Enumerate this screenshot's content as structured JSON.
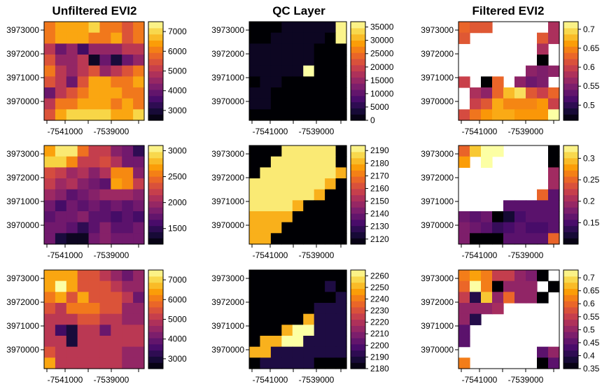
{
  "titles": [
    "Unfiltered EVI2",
    "QC Layer",
    "Filtered EVI2"
  ],
  "colors": [
    "#000004",
    "#1b0c41",
    "#4a0c6b",
    "#781c6d",
    "#a52c60",
    "#cf4446",
    "#ed6925",
    "#fb9b06",
    "#f7d13d",
    "#fcffa4"
  ],
  "x_ticks": [
    -7541000,
    -7539000
  ],
  "y_ticks": [
    3973000,
    3972000,
    3971000,
    3970000
  ],
  "chart_data": [
    {
      "type": "heatmap",
      "row": 0,
      "col": 0,
      "title": "Unfiltered EVI2",
      "xlabel": "",
      "ylabel": "",
      "x_ticks": [
        -7541000,
        -7539000
      ],
      "y_ticks": [
        3973000,
        3972000,
        3971000,
        3970000
      ],
      "legend_range": [
        2500,
        7500
      ],
      "legend_ticks": [
        3000,
        4000,
        5000,
        6000,
        7000
      ],
      "grid": [
        [
          6000,
          6500,
          6500,
          6500,
          7000,
          6000,
          6000,
          5500,
          6000
        ],
        [
          6000,
          6500,
          6500,
          6500,
          6000,
          6000,
          6500,
          5500,
          6000
        ],
        [
          5000,
          4000,
          4500,
          3500,
          4500,
          4500,
          4500,
          5000,
          5000
        ],
        [
          5500,
          4500,
          4500,
          5000,
          2800,
          4000,
          3000,
          4000,
          4500
        ],
        [
          6000,
          5000,
          4500,
          5000,
          5500,
          4500,
          5000,
          5500,
          6000
        ],
        [
          5500,
          5000,
          4000,
          5500,
          6500,
          6500,
          6000,
          6000,
          6500
        ],
        [
          4000,
          5000,
          5500,
          6000,
          6500,
          6500,
          6500,
          6000,
          6000
        ],
        [
          5000,
          6000,
          6000,
          6500,
          6500,
          6500,
          6000,
          6500,
          6000
        ],
        [
          5500,
          6500,
          7000,
          7000,
          7000,
          7000,
          6500,
          6500,
          7000
        ]
      ]
    },
    {
      "type": "heatmap",
      "row": 0,
      "col": 1,
      "title": "QC Layer",
      "xlabel": "",
      "ylabel": "",
      "x_ticks": [
        -7541000,
        -7539000
      ],
      "y_ticks": [
        3973000,
        3972000,
        3971000,
        3970000
      ],
      "legend_range": [
        0,
        37000
      ],
      "legend_ticks": [
        0,
        5000,
        10000,
        15000,
        20000,
        25000,
        30000,
        35000
      ],
      "grid": [
        [
          0,
          0,
          0,
          2000,
          2000,
          2000,
          2000,
          2000,
          36000
        ],
        [
          0,
          0,
          2000,
          2000,
          2000,
          2000,
          2000,
          0,
          36000
        ],
        [
          2000,
          2000,
          2000,
          2000,
          2000,
          2000,
          0,
          0,
          0
        ],
        [
          2000,
          2000,
          2000,
          2000,
          2000,
          2000,
          0,
          0,
          0
        ],
        [
          2000,
          2000,
          2000,
          2000,
          2000,
          37000,
          0,
          0,
          0
        ],
        [
          0,
          2000,
          2000,
          0,
          0,
          0,
          0,
          0,
          0
        ],
        [
          2000,
          2000,
          0,
          0,
          0,
          0,
          0,
          0,
          0
        ],
        [
          2000,
          2000,
          0,
          0,
          0,
          0,
          0,
          0,
          0
        ],
        [
          0,
          0,
          0,
          0,
          0,
          0,
          0,
          0,
          0
        ]
      ]
    },
    {
      "type": "heatmap",
      "row": 0,
      "col": 2,
      "title": "Filtered EVI2",
      "xlabel": "",
      "ylabel": "",
      "x_ticks": [
        -7541000,
        -7539000
      ],
      "y_ticks": [
        3973000,
        3972000,
        3971000,
        3970000
      ],
      "legend_range": [
        0.46,
        0.72
      ],
      "legend_ticks": [
        0.5,
        0.55,
        0.6,
        0.65,
        0.7
      ],
      "grid": [
        [
          0.63,
          0.62,
          0.62,
          null,
          null,
          null,
          null,
          null,
          0.58
        ],
        [
          0.62,
          null,
          null,
          null,
          null,
          null,
          null,
          0.62,
          0.58
        ],
        [
          null,
          null,
          null,
          null,
          null,
          null,
          null,
          0.58,
          null
        ],
        [
          null,
          null,
          null,
          null,
          null,
          null,
          null,
          0.46,
          null
        ],
        [
          null,
          null,
          null,
          null,
          null,
          null,
          0.56,
          0.55,
          0.56
        ],
        [
          0.6,
          null,
          0.46,
          0.63,
          null,
          0.56,
          0.54,
          0.55,
          null
        ],
        [
          null,
          0.58,
          0.56,
          0.63,
          0.68,
          0.7,
          0.62,
          0.6,
          0.63
        ],
        [
          null,
          0.6,
          0.62,
          0.67,
          0.65,
          0.65,
          0.65,
          0.66,
          0.6
        ],
        [
          0.61,
          0.64,
          0.66,
          0.67,
          0.67,
          0.66,
          0.66,
          0.66,
          0.72
        ]
      ]
    },
    {
      "type": "heatmap",
      "row": 1,
      "col": 0,
      "title": "",
      "xlabel": "",
      "ylabel": "",
      "x_ticks": [
        -7541000,
        -7539000
      ],
      "y_ticks": [
        3973000,
        3972000,
        3971000,
        3970000
      ],
      "legend_range": [
        1200,
        3100
      ],
      "legend_ticks": [
        1500,
        2000,
        2500,
        3000
      ],
      "grid": [
        [
          2700,
          3000,
          3000,
          2500,
          2200,
          2200,
          1900,
          1800,
          1500
        ],
        [
          2900,
          2900,
          2600,
          2200,
          2200,
          2300,
          2100,
          1800,
          1800
        ],
        [
          2300,
          2200,
          2000,
          2100,
          1900,
          2100,
          2600,
          2600,
          1900
        ],
        [
          2200,
          2000,
          2100,
          1900,
          1800,
          1700,
          2700,
          2600,
          2200
        ],
        [
          2000,
          1900,
          1700,
          1800,
          1900,
          2000,
          2000,
          2000,
          1900
        ],
        [
          1800,
          1600,
          1800,
          1700,
          1800,
          1700,
          1800,
          1700,
          1800
        ],
        [
          1700,
          1800,
          1800,
          1900,
          1700,
          1700,
          1600,
          1700,
          1600
        ],
        [
          1800,
          1800,
          1700,
          1500,
          1700,
          1900,
          1700,
          1700,
          1800
        ],
        [
          1800,
          1400,
          1300,
          1300,
          1800,
          1900,
          1800,
          1800,
          1800
        ]
      ]
    },
    {
      "type": "heatmap",
      "row": 1,
      "col": 1,
      "title": "",
      "xlabel": "",
      "ylabel": "",
      "x_ticks": [
        -7541000,
        -7539000
      ],
      "y_ticks": [
        3973000,
        3972000,
        3971000,
        3970000
      ],
      "legend_range": [
        2116,
        2194
      ],
      "legend_ticks": [
        2120,
        2130,
        2140,
        2150,
        2160,
        2170,
        2180,
        2190
      ],
      "grid": [
        [
          2116,
          2116,
          2116,
          2190,
          2190,
          2190,
          2190,
          2190,
          2116
        ],
        [
          2116,
          2116,
          2190,
          2190,
          2190,
          2190,
          2190,
          2190,
          2116
        ],
        [
          2116,
          2190,
          2190,
          2190,
          2190,
          2190,
          2190,
          2190,
          2180
        ],
        [
          2190,
          2190,
          2190,
          2190,
          2190,
          2190,
          2190,
          2180,
          2116
        ],
        [
          2190,
          2190,
          2190,
          2190,
          2190,
          2190,
          2180,
          2116,
          2116
        ],
        [
          2190,
          2190,
          2190,
          2190,
          2180,
          2116,
          2116,
          2116,
          2116
        ],
        [
          2180,
          2180,
          2180,
          2180,
          2116,
          2116,
          2116,
          2116,
          2116
        ],
        [
          2180,
          2180,
          2180,
          2116,
          2116,
          2116,
          2116,
          2116,
          2116
        ],
        [
          2180,
          2180,
          2116,
          2116,
          2116,
          2116,
          2116,
          2116,
          2116
        ]
      ]
    },
    {
      "type": "heatmap",
      "row": 1,
      "col": 2,
      "title": "",
      "xlabel": "",
      "ylabel": "",
      "x_ticks": [
        -7541000,
        -7539000
      ],
      "y_ticks": [
        3973000,
        3972000,
        3971000,
        3970000
      ],
      "legend_range": [
        0.1,
        0.33
      ],
      "legend_ticks": [
        0.15,
        0.2,
        0.25,
        0.3
      ],
      "grid": [
        [
          0.25,
          0.3,
          0.33,
          0.33,
          null,
          null,
          null,
          null,
          0.1
        ],
        [
          0.28,
          null,
          0.33,
          null,
          null,
          null,
          null,
          null,
          0.1
        ],
        [
          null,
          null,
          null,
          null,
          null,
          null,
          null,
          null,
          0.2
        ],
        [
          null,
          null,
          null,
          null,
          null,
          null,
          null,
          null,
          0.2
        ],
        [
          null,
          null,
          null,
          null,
          null,
          null,
          null,
          0.25,
          0.16
        ],
        [
          null,
          null,
          null,
          null,
          0.16,
          0.16,
          0.16,
          0.16,
          0.16
        ],
        [
          0.17,
          0.16,
          0.17,
          0.1,
          0.12,
          0.15,
          0.16,
          0.16,
          0.16
        ],
        [
          0.18,
          0.17,
          0.16,
          0.14,
          0.15,
          0.16,
          0.15,
          0.15,
          0.16
        ],
        [
          0.18,
          0.1,
          0.1,
          0.1,
          0.16,
          0.16,
          0.16,
          0.16,
          0.25
        ]
      ]
    },
    {
      "type": "heatmap",
      "row": 2,
      "col": 0,
      "title": "",
      "xlabel": "",
      "ylabel": "",
      "x_ticks": [
        -7541000,
        -7539000
      ],
      "y_ticks": [
        3973000,
        3972000,
        3971000,
        3970000
      ],
      "legend_range": [
        2500,
        7500
      ],
      "legend_ticks": [
        3000,
        4000,
        5000,
        6000,
        7000
      ],
      "grid": [
        [
          6500,
          6500,
          6500,
          5500,
          5500,
          5000,
          4500,
          4000,
          4500
        ],
        [
          6500,
          7500,
          6500,
          5500,
          5500,
          5500,
          5000,
          4500,
          4500
        ],
        [
          6000,
          6500,
          5500,
          6500,
          5500,
          5500,
          5500,
          5000,
          4000
        ],
        [
          5500,
          5000,
          6000,
          6000,
          6000,
          5500,
          5500,
          4500,
          4500
        ],
        [
          5000,
          5000,
          5000,
          5500,
          5500,
          5000,
          5000,
          4500,
          4500
        ],
        [
          5000,
          3500,
          3000,
          5000,
          5000,
          4000,
          5000,
          5000,
          5000
        ],
        [
          5000,
          5000,
          3000,
          5000,
          5000,
          5000,
          5000,
          5000,
          5000
        ],
        [
          5500,
          5000,
          5000,
          5000,
          5000,
          5000,
          5000,
          4500,
          4500
        ],
        [
          6500,
          5000,
          5000,
          5000,
          5000,
          5000,
          5000,
          4500,
          4500
        ]
      ]
    },
    {
      "type": "heatmap",
      "row": 2,
      "col": 1,
      "title": "",
      "xlabel": "",
      "ylabel": "",
      "x_ticks": [
        -7541000,
        -7539000
      ],
      "y_ticks": [
        3973000,
        3972000,
        3971000,
        3970000
      ],
      "legend_range": [
        2180,
        2265
      ],
      "legend_ticks": [
        2180,
        2190,
        2200,
        2210,
        2220,
        2230,
        2240,
        2250,
        2260
      ],
      "grid": [
        [
          2180,
          2180,
          2180,
          2180,
          2180,
          2180,
          2180,
          2180,
          2180
        ],
        [
          2180,
          2180,
          2180,
          2180,
          2180,
          2180,
          2180,
          2190,
          2180
        ],
        [
          2180,
          2180,
          2180,
          2180,
          2180,
          2180,
          2180,
          2180,
          2190
        ],
        [
          2180,
          2180,
          2180,
          2180,
          2180,
          2180,
          2190,
          2190,
          2190
        ],
        [
          2180,
          2180,
          2180,
          2180,
          2180,
          2250,
          2190,
          2190,
          2190
        ],
        [
          2180,
          2180,
          2180,
          2250,
          2265,
          2265,
          2190,
          2190,
          2190
        ],
        [
          2180,
          2250,
          2250,
          2265,
          2265,
          2190,
          2190,
          2190,
          2190
        ],
        [
          2250,
          2250,
          2190,
          2190,
          2190,
          2190,
          2190,
          2190,
          2190
        ],
        [
          2180,
          2190,
          2190,
          2190,
          2190,
          2190,
          2180,
          2180,
          2180
        ]
      ]
    },
    {
      "type": "heatmap",
      "row": 2,
      "col": 2,
      "title": "",
      "xlabel": "",
      "ylabel": "",
      "x_ticks": [
        -7541000,
        -7539000
      ],
      "y_ticks": [
        3973000,
        3972000,
        3971000,
        3970000
      ],
      "legend_range": [
        0.35,
        0.73
      ],
      "legend_ticks": [
        0.35,
        0.4,
        0.45,
        0.5,
        0.55,
        0.6,
        0.65,
        0.7
      ],
      "grid": [
        [
          0.62,
          0.65,
          0.62,
          0.55,
          0.55,
          0.5,
          0.48,
          0.35,
          null
        ],
        [
          0.6,
          0.73,
          0.62,
          0.35,
          0.5,
          0.5,
          0.5,
          null,
          0.35
        ],
        [
          0.55,
          0.4,
          0.68,
          0.5,
          0.6,
          0.5,
          0.5,
          0.35,
          null
        ],
        [
          0.5,
          0.5,
          0.5,
          0.52,
          null,
          null,
          null,
          null,
          null
        ],
        [
          0.5,
          0.4,
          null,
          null,
          null,
          null,
          null,
          null,
          null
        ],
        [
          0.45,
          null,
          null,
          null,
          null,
          null,
          null,
          null,
          null
        ],
        [
          0.45,
          null,
          null,
          null,
          null,
          null,
          null,
          null,
          null
        ],
        [
          null,
          null,
          null,
          null,
          null,
          null,
          null,
          0.45,
          0.5
        ],
        [
          0.62,
          null,
          null,
          null,
          null,
          null,
          null,
          0.35,
          0.45
        ]
      ]
    }
  ]
}
